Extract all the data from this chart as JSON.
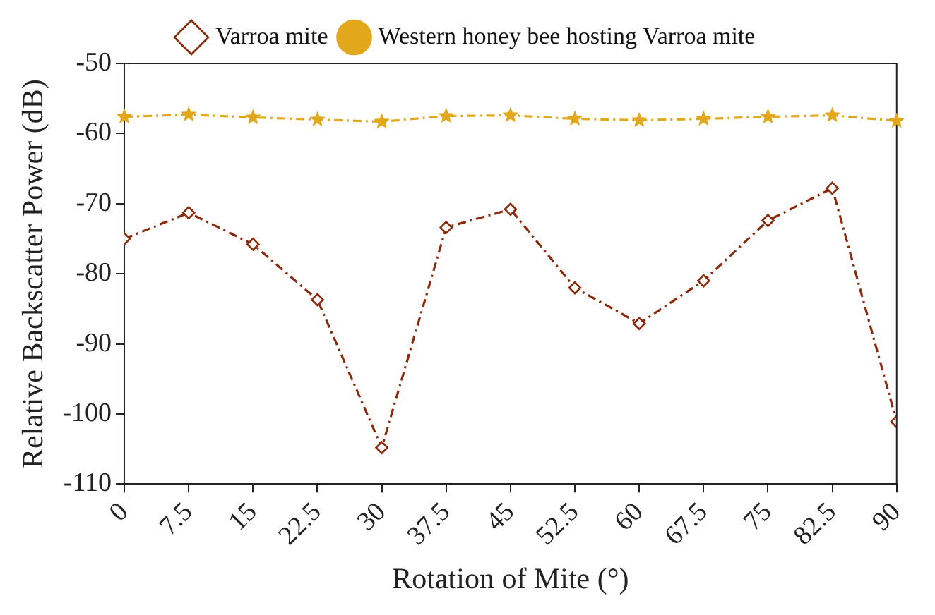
{
  "chart_data": {
    "type": "line",
    "xlabel": "Rotation of Mite (°)",
    "ylabel": "Relative Backscatter Power (dB)",
    "x": [
      0,
      7.5,
      15,
      22.5,
      30,
      37.5,
      45,
      52.5,
      60,
      67.5,
      75,
      82.5,
      90
    ],
    "xlim": [
      0,
      90
    ],
    "xticks": [
      0,
      7.5,
      15,
      22.5,
      30,
      37.5,
      45,
      52.5,
      60,
      67.5,
      75,
      82.5,
      90
    ],
    "ylim": [
      -110,
      -50
    ],
    "yticks": [
      -110,
      -100,
      -90,
      -80,
      -70,
      -60,
      -50
    ],
    "grid": false,
    "legend": "top",
    "line_style": "dashed",
    "series": [
      {
        "name": "Varroa mite",
        "color": "#8b2a0c",
        "marker": "diamond",
        "values": [
          -75,
          -71.3,
          -75.8,
          -83.7,
          -104.8,
          -73.4,
          -70.8,
          -82,
          -87.1,
          -81,
          -72.4,
          -67.8,
          -101.1
        ]
      },
      {
        "name": "Western honey bee hosting Varroa mite",
        "color": "#e0a81a",
        "marker": "star",
        "values": [
          -57.6,
          -57.3,
          -57.7,
          -58,
          -58.3,
          -57.5,
          -57.4,
          -57.9,
          -58.1,
          -57.9,
          -57.6,
          -57.4,
          -58.2
        ]
      }
    ]
  }
}
